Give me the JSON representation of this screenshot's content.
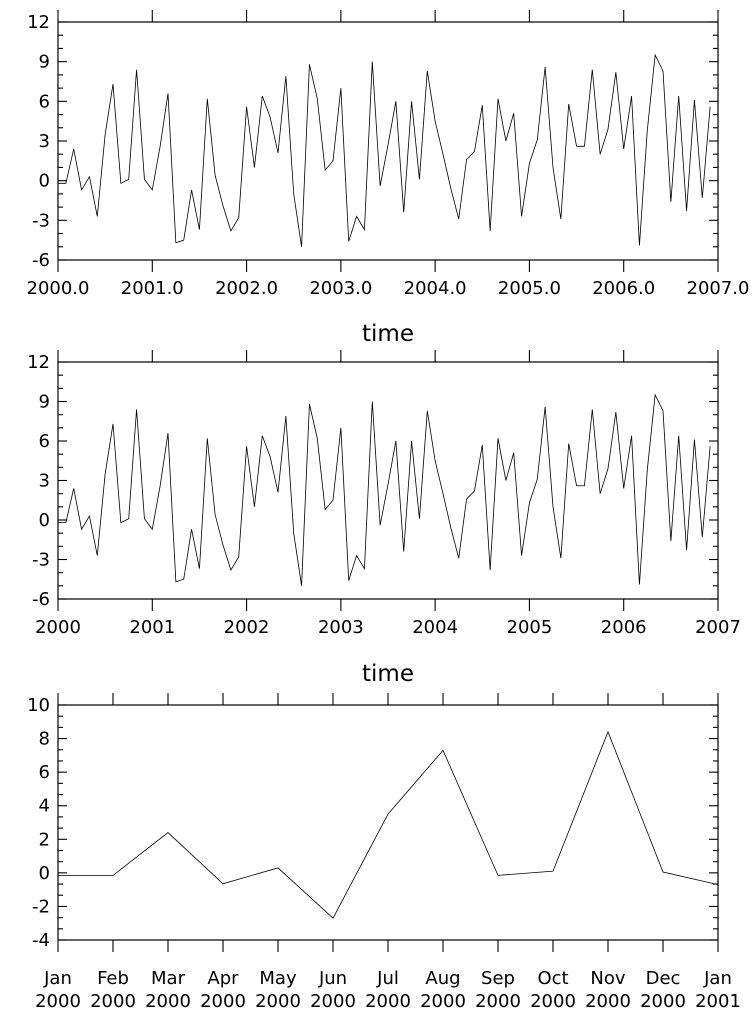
{
  "chart_data": [
    {
      "type": "line",
      "xlabel": "time",
      "ylabel": "",
      "xlim": [
        2000,
        2007
      ],
      "ylim": [
        -6,
        12
      ],
      "xticks": [
        "2000.0",
        "2001.0",
        "2002.0",
        "2003.0",
        "2004.0",
        "2005.0",
        "2006.0",
        "2007.0"
      ],
      "yticks": [
        "12",
        "9",
        "6",
        "3",
        "0",
        "-3",
        "-6"
      ],
      "series": [
        {
          "values": [
            -0.2,
            -0.2,
            2.4,
            -0.7,
            0.3,
            -2.7,
            3.5,
            7.3,
            -0.2,
            0.1,
            8.4,
            0.1,
            -0.7,
            2.6,
            6.6,
            -4.7,
            -4.5,
            -0.7,
            -3.7,
            6.2,
            0.4,
            -1.9,
            -3.8,
            -2.8,
            5.6,
            1.0,
            6.4,
            4.8,
            2.1,
            7.9,
            -1.0,
            -5.0,
            8.8,
            6.2,
            0.8,
            1.5,
            7.0,
            -4.6,
            -2.7,
            -3.7,
            9.0,
            -0.4,
            2.7,
            6.0,
            -2.4,
            6.0,
            0.1,
            8.3,
            4.5,
            2.0,
            -0.6,
            -2.9,
            1.6,
            2.2,
            5.7,
            -3.8,
            6.2,
            3.0,
            5.1,
            -2.7,
            1.3,
            3.1,
            8.6,
            1.0,
            -2.9,
            5.8,
            2.6,
            2.6,
            8.4,
            2.0,
            3.9,
            8.2,
            2.4,
            6.4,
            -4.9,
            3.8,
            9.5,
            8.3,
            -1.6,
            6.4,
            -2.3,
            6.1,
            -1.3,
            5.6
          ]
        }
      ]
    },
    {
      "type": "line",
      "xlabel": "time",
      "ylabel": "",
      "xlim": [
        2000,
        2007
      ],
      "ylim": [
        -6,
        12
      ],
      "xticks": [
        "2000",
        "2001",
        "2002",
        "2003",
        "2004",
        "2005",
        "2006",
        "2007"
      ],
      "yticks": [
        "12",
        "9",
        "6",
        "3",
        "0",
        "-3",
        "-6"
      ],
      "series": [
        {
          "values": [
            -0.2,
            -0.2,
            2.4,
            -0.7,
            0.3,
            -2.7,
            3.5,
            7.3,
            -0.2,
            0.1,
            8.4,
            0.1,
            -0.7,
            2.6,
            6.6,
            -4.7,
            -4.5,
            -0.7,
            -3.7,
            6.2,
            0.4,
            -1.9,
            -3.8,
            -2.8,
            5.6,
            1.0,
            6.4,
            4.8,
            2.1,
            7.9,
            -1.0,
            -5.0,
            8.8,
            6.2,
            0.8,
            1.5,
            7.0,
            -4.6,
            -2.7,
            -3.7,
            9.0,
            -0.4,
            2.7,
            6.0,
            -2.4,
            6.0,
            0.1,
            8.3,
            4.5,
            2.0,
            -0.6,
            -2.9,
            1.6,
            2.2,
            5.7,
            -3.8,
            6.2,
            3.0,
            5.1,
            -2.7,
            1.3,
            3.1,
            8.6,
            1.0,
            -2.9,
            5.8,
            2.6,
            2.6,
            8.4,
            2.0,
            3.9,
            8.2,
            2.4,
            6.4,
            -4.9,
            3.8,
            9.5,
            8.3,
            -1.6,
            6.4,
            -2.3,
            6.1,
            -1.3,
            5.6
          ]
        }
      ]
    },
    {
      "type": "line",
      "xlabel": "",
      "ylabel": "",
      "ylim": [
        -4,
        10
      ],
      "categories": [
        "Jan 2000",
        "Feb 2000",
        "Mar 2000",
        "Apr 2000",
        "May 2000",
        "Jun 2000",
        "Jul 2000",
        "Aug 2000",
        "Sep 2000",
        "Oct 2000",
        "Nov 2000",
        "Dec 2000",
        "Jan 2001"
      ],
      "xticks": [
        [
          "Jan",
          "2000"
        ],
        [
          "Feb",
          "2000"
        ],
        [
          "Mar",
          "2000"
        ],
        [
          "Apr",
          "2000"
        ],
        [
          "May",
          "2000"
        ],
        [
          "Jun",
          "2000"
        ],
        [
          "Jul",
          "2000"
        ],
        [
          "Aug",
          "2000"
        ],
        [
          "Sep",
          "2000"
        ],
        [
          "Oct",
          "2000"
        ],
        [
          "Nov",
          "2000"
        ],
        [
          "Dec",
          "2000"
        ],
        [
          "Jan",
          "2001"
        ]
      ],
      "yticks": [
        "10",
        "8",
        "6",
        "4",
        "2",
        "0",
        "-2",
        "-4"
      ],
      "series": [
        {
          "values": [
            -0.15,
            -0.15,
            2.4,
            -0.65,
            0.3,
            -2.7,
            3.5,
            7.3,
            -0.15,
            0.1,
            8.4,
            0.05,
            -0.7
          ]
        }
      ]
    }
  ]
}
